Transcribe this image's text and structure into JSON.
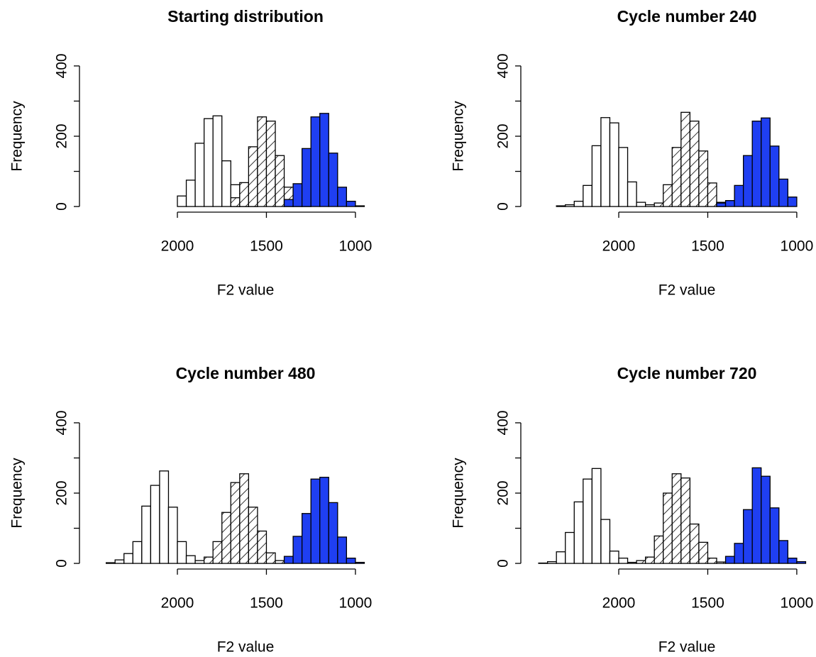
{
  "chart_data": [
    {
      "type": "histogram",
      "title": "Starting distribution",
      "xlabel": "F2 value",
      "ylabel": "Frequency",
      "xlim": [
        2550,
        900
      ],
      "ylim": [
        -16,
        416
      ],
      "xticks": [
        2000,
        1500,
        1000
      ],
      "yticks": [
        0,
        200,
        400
      ],
      "yminorticks": [
        100,
        300
      ],
      "series": [
        {
          "color": "#ffffff",
          "bins": [
            2000,
            1950,
            1900,
            1850,
            1800,
            1750,
            1700,
            1650,
            1600,
            1550,
            1500
          ],
          "values": [
            30,
            75,
            180,
            250,
            258,
            130,
            62,
            25,
            5,
            0
          ]
        },
        {
          "color": "#ffffff",
          "pattern": "hatch",
          "bins": [
            1700,
            1650,
            1600,
            1550,
            1500,
            1450,
            1400,
            1350,
            1300,
            1250
          ],
          "values": [
            25,
            68,
            170,
            255,
            243,
            145,
            55,
            20,
            5
          ]
        },
        {
          "color": "#1f3ff2",
          "bins": [
            1400,
            1350,
            1300,
            1250,
            1200,
            1150,
            1100,
            1050,
            1000,
            950
          ],
          "values": [
            20,
            65,
            165,
            255,
            265,
            152,
            55,
            15,
            2
          ]
        }
      ]
    },
    {
      "type": "histogram",
      "title": "Cycle number 240",
      "xlabel": "F2 value",
      "ylabel": "Frequency",
      "xlim": [
        2550,
        900
      ],
      "ylim": [
        -16,
        416
      ],
      "xticks": [
        2000,
        1500,
        1000
      ],
      "yticks": [
        0,
        200,
        400
      ],
      "yminorticks": [
        100,
        300
      ],
      "series": [
        {
          "color": "#ffffff",
          "bins": [
            2350,
            2300,
            2250,
            2200,
            2150,
            2100,
            2050,
            2000,
            1950,
            1900,
            1850,
            1800
          ],
          "values": [
            2,
            5,
            15,
            60,
            173,
            253,
            238,
            168,
            70,
            12,
            5
          ]
        },
        {
          "color": "#ffffff",
          "pattern": "hatch",
          "bins": [
            1800,
            1750,
            1700,
            1650,
            1600,
            1550,
            1500,
            1450,
            1400
          ],
          "values": [
            10,
            62,
            168,
            268,
            243,
            158,
            67,
            12
          ]
        },
        {
          "color": "#1f3ff2",
          "bins": [
            1450,
            1400,
            1350,
            1300,
            1250,
            1200,
            1150,
            1100,
            1050,
            1000
          ],
          "values": [
            10,
            17,
            60,
            145,
            243,
            252,
            172,
            78,
            27
          ]
        }
      ]
    },
    {
      "type": "histogram",
      "title": "Cycle number 480",
      "xlabel": "F2 value",
      "ylabel": "Frequency",
      "xlim": [
        2550,
        900
      ],
      "ylim": [
        -16,
        416
      ],
      "xticks": [
        2000,
        1500,
        1000
      ],
      "yticks": [
        0,
        200,
        400
      ],
      "yminorticks": [
        100,
        300
      ],
      "series": [
        {
          "color": "#ffffff",
          "bins": [
            2400,
            2350,
            2300,
            2250,
            2200,
            2150,
            2100,
            2050,
            2000,
            1950,
            1900,
            1850
          ],
          "values": [
            2,
            10,
            28,
            62,
            163,
            222,
            263,
            160,
            62,
            22,
            8
          ]
        },
        {
          "color": "#ffffff",
          "pattern": "hatch",
          "bins": [
            1850,
            1800,
            1750,
            1700,
            1650,
            1600,
            1550,
            1500,
            1450,
            1400
          ],
          "values": [
            18,
            62,
            145,
            230,
            255,
            160,
            92,
            30,
            8
          ]
        },
        {
          "color": "#1f3ff2",
          "bins": [
            1400,
            1350,
            1300,
            1250,
            1200,
            1150,
            1100,
            1050,
            1000,
            950
          ],
          "values": [
            20,
            77,
            142,
            240,
            245,
            173,
            75,
            15,
            3
          ]
        }
      ]
    },
    {
      "type": "histogram",
      "title": "Cycle number 720",
      "xlabel": "F2 value",
      "ylabel": "Frequency",
      "xlim": [
        2550,
        900
      ],
      "ylim": [
        -16,
        416
      ],
      "xticks": [
        2000,
        1500,
        1000
      ],
      "yticks": [
        0,
        200,
        400
      ],
      "yminorticks": [
        100,
        300
      ],
      "series": [
        {
          "color": "#ffffff",
          "bins": [
            2450,
            2400,
            2350,
            2300,
            2250,
            2200,
            2150,
            2100,
            2050,
            2000,
            1950,
            1900
          ],
          "values": [
            1,
            5,
            33,
            88,
            175,
            240,
            270,
            125,
            35,
            15,
            3
          ]
        },
        {
          "color": "#ffffff",
          "pattern": "hatch",
          "bins": [
            1900,
            1850,
            1800,
            1750,
            1700,
            1650,
            1600,
            1550,
            1500,
            1450,
            1400
          ],
          "values": [
            8,
            18,
            78,
            200,
            255,
            243,
            112,
            60,
            15,
            4
          ]
        },
        {
          "color": "#1f3ff2",
          "bins": [
            1400,
            1350,
            1300,
            1250,
            1200,
            1150,
            1100,
            1050,
            1000,
            950
          ],
          "values": [
            20,
            57,
            153,
            272,
            248,
            158,
            65,
            15,
            5
          ]
        }
      ]
    }
  ]
}
